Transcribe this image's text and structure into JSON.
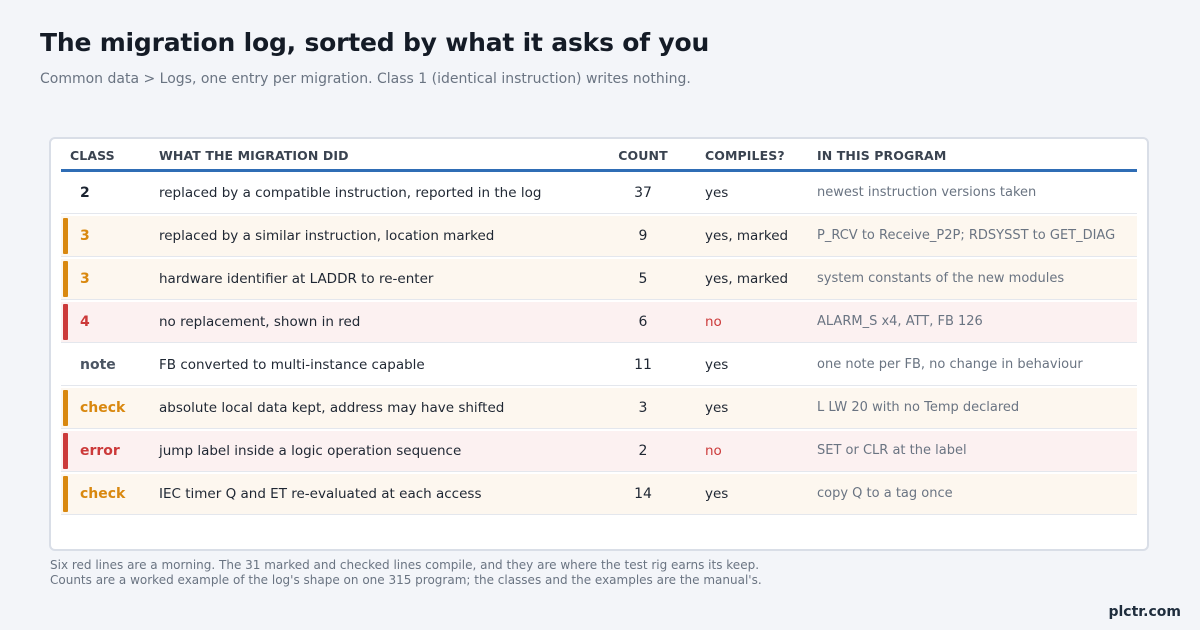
{
  "header": {
    "title": "The migration log, sorted by what it asks of you",
    "subtitle": "Common data > Logs, one entry per migration. Class 1 (identical instruction) writes nothing."
  },
  "table": {
    "columns": {
      "class": "CLASS",
      "did": "WHAT THE MIGRATION DID",
      "count": "COUNT",
      "compiles": "COMPILES?",
      "program": "IN THIS PROGRAM"
    },
    "rows": [
      {
        "tone": "plain",
        "class": "2",
        "did": "replaced by a compatible instruction, reported in the log",
        "count": "37",
        "compiles": "yes",
        "program": "newest instruction versions taken"
      },
      {
        "tone": "amber",
        "class": "3",
        "did": "replaced by a similar instruction, location marked",
        "count": "9",
        "compiles": "yes, marked",
        "program": "P_RCV to Receive_P2P; RDSYSST to GET_DIAG"
      },
      {
        "tone": "amber",
        "class": "3",
        "did": "hardware identifier at LADDR to re-enter",
        "count": "5",
        "compiles": "yes, marked",
        "program": "system constants of the new modules"
      },
      {
        "tone": "red",
        "class": "4",
        "did": "no replacement, shown in red",
        "count": "6",
        "compiles": "no",
        "program": "ALARM_S x4, ATT, FB 126"
      },
      {
        "tone": "neutral",
        "class": "note",
        "did": "FB converted to multi-instance capable",
        "count": "11",
        "compiles": "yes",
        "program": "one note per FB, no change in behaviour"
      },
      {
        "tone": "amber",
        "class": "check",
        "did": "absolute local data kept, address may have shifted",
        "count": "3",
        "compiles": "yes",
        "program": "L LW 20 with no Temp declared"
      },
      {
        "tone": "red",
        "class": "error",
        "did": "jump label inside a logic operation sequence",
        "count": "2",
        "compiles": "no",
        "program": "SET or CLR at the label"
      },
      {
        "tone": "amber",
        "class": "check",
        "did": "IEC timer Q and ET re-evaluated at each access",
        "count": "14",
        "compiles": "yes",
        "program": "copy Q to a tag once"
      }
    ]
  },
  "footnotes": [
    "Six red lines are a morning. The 31 marked and checked lines compile, and they are where the test rig earns its keep.",
    "Counts are a worked example of the log's shape on one 315 program; the classes and the examples are the manual's."
  ],
  "brand": "plctr.com",
  "colors": {
    "accent": "#2f6db5",
    "amber": "#d9880f",
    "red": "#cc3a3a"
  }
}
